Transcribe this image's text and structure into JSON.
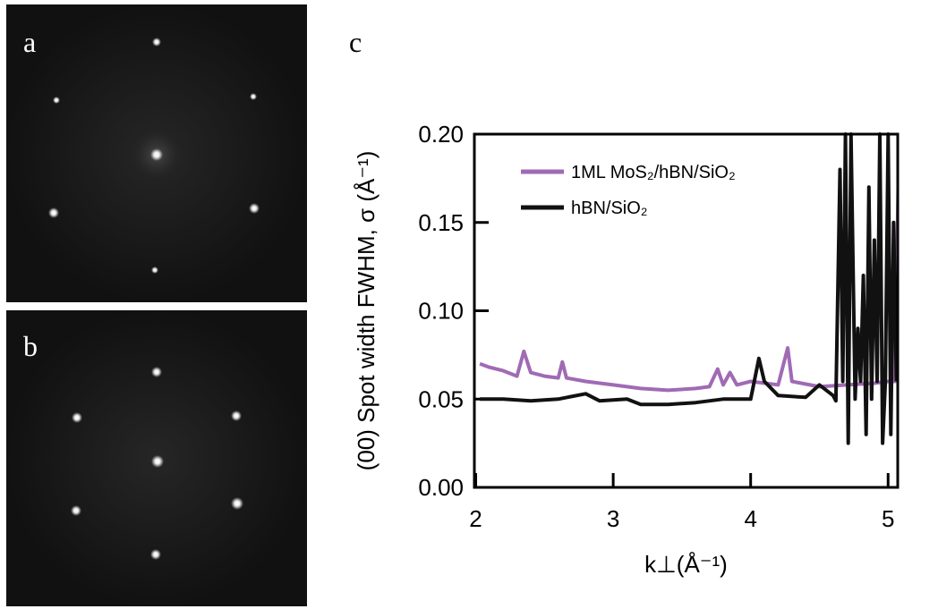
{
  "panel_labels": [
    "a",
    "b"
  ],
  "chart_data": {
    "type": "line",
    "panel_label": "c",
    "xlabel": "k⊥(Å⁻¹)",
    "ylabel": "(00) Spot width FWHM, σ (Å⁻¹)",
    "xlim": [
      1.99,
      5.07
    ],
    "ylim": [
      0,
      0.2
    ],
    "xticks": [
      2,
      3,
      4,
      5
    ],
    "yticks": [
      {
        "value": 0,
        "label": "0.00"
      },
      0.05,
      {
        "value": 0.1,
        "label": "0.10"
      },
      0.15,
      {
        "value": 0.2,
        "label": "0.20"
      }
    ],
    "legend": "upper left",
    "series": [
      {
        "name": "1ML MoS₂/hBN/SiO₂",
        "color": "#a06ab4",
        "x": [
          2.03,
          2.1,
          2.2,
          2.3,
          2.35,
          2.4,
          2.5,
          2.6,
          2.63,
          2.66,
          2.8,
          3.0,
          3.2,
          3.4,
          3.6,
          3.7,
          3.76,
          3.8,
          3.85,
          3.9,
          4.0,
          4.2,
          4.27,
          4.3,
          4.5,
          4.7,
          4.9,
          5.0,
          5.05,
          5.08
        ],
        "values": [
          0.07,
          0.068,
          0.066,
          0.063,
          0.077,
          0.065,
          0.063,
          0.062,
          0.071,
          0.062,
          0.06,
          0.058,
          0.056,
          0.055,
          0.056,
          0.057,
          0.067,
          0.058,
          0.065,
          0.058,
          0.06,
          0.058,
          0.079,
          0.06,
          0.057,
          0.058,
          0.059,
          0.06,
          0.06,
          0.2
        ]
      },
      {
        "name": "hBN/SiO₂",
        "color": "#111111",
        "x": [
          2.03,
          2.2,
          2.4,
          2.6,
          2.8,
          2.9,
          3.1,
          3.2,
          3.4,
          3.6,
          3.8,
          4.0,
          4.06,
          4.1,
          4.2,
          4.4,
          4.5,
          4.6,
          4.62,
          4.65,
          4.67,
          4.69,
          4.71,
          4.73,
          4.76,
          4.78,
          4.8,
          4.82,
          4.84,
          4.86,
          4.88,
          4.9,
          4.92,
          4.94,
          4.96,
          4.98,
          5.0,
          5.02,
          5.04,
          5.06
        ],
        "values": [
          0.05,
          0.05,
          0.049,
          0.05,
          0.053,
          0.049,
          0.05,
          0.047,
          0.047,
          0.048,
          0.05,
          0.05,
          0.073,
          0.06,
          0.052,
          0.051,
          0.058,
          0.052,
          0.049,
          0.18,
          0.06,
          0.2,
          0.025,
          0.2,
          0.05,
          0.09,
          0.06,
          0.12,
          0.03,
          0.17,
          0.05,
          0.14,
          0.06,
          0.2,
          0.025,
          0.06,
          0.2,
          0.03,
          0.15,
          0.06
        ]
      }
    ]
  }
}
